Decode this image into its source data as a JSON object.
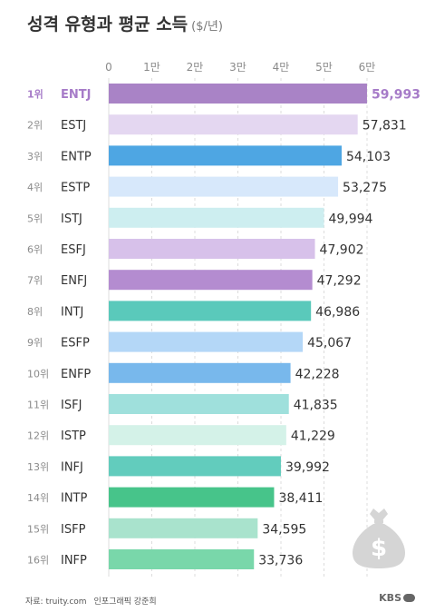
{
  "header": {
    "title": "성격 유형과 평균 소득",
    "unit": "($/년)"
  },
  "chart_data": {
    "type": "bar",
    "orientation": "horizontal",
    "title": "성격 유형과 평균 소득",
    "unit": "($/년)",
    "xlim": [
      0,
      60000
    ],
    "x_ticks": [
      {
        "value": 0,
        "label": "0"
      },
      {
        "value": 10000,
        "label": "1만"
      },
      {
        "value": 20000,
        "label": "2만"
      },
      {
        "value": 30000,
        "label": "3만"
      },
      {
        "value": 40000,
        "label": "4만"
      },
      {
        "value": 50000,
        "label": "5만"
      },
      {
        "value": 60000,
        "label": "6만"
      }
    ],
    "grid": "vertical-dashed",
    "highlight_index": 0,
    "highlight_color": "#a67bc8",
    "bars": [
      {
        "rank": "1위",
        "type": "ENTJ",
        "value": 59993,
        "label": "59,993",
        "color": "#a983c6"
      },
      {
        "rank": "2위",
        "type": "ESTJ",
        "value": 57831,
        "label": "57,831",
        "color": "#e4d7f1"
      },
      {
        "rank": "3위",
        "type": "ENTP",
        "value": 54103,
        "label": "54,103",
        "color": "#4ea6e3"
      },
      {
        "rank": "4위",
        "type": "ESTP",
        "value": 53275,
        "label": "53,275",
        "color": "#d7e8fb"
      },
      {
        "rank": "5위",
        "type": "ISTJ",
        "value": 49994,
        "label": "49,994",
        "color": "#cdeef0"
      },
      {
        "rank": "6위",
        "type": "ESFJ",
        "value": 47902,
        "label": "47,902",
        "color": "#d7c1ea"
      },
      {
        "rank": "7위",
        "type": "ENFJ",
        "value": 47292,
        "label": "47,292",
        "color": "#b48cd0"
      },
      {
        "rank": "8위",
        "type": "INTJ",
        "value": 46986,
        "label": "46,986",
        "color": "#5ac9bb"
      },
      {
        "rank": "9위",
        "type": "ESFP",
        "value": 45067,
        "label": "45,067",
        "color": "#b4d7f7"
      },
      {
        "rank": "10위",
        "type": "ENFP",
        "value": 42228,
        "label": "42,228",
        "color": "#78b8ec"
      },
      {
        "rank": "11위",
        "type": "ISFJ",
        "value": 41835,
        "label": "41,835",
        "color": "#9fe0dc"
      },
      {
        "rank": "12위",
        "type": "ISTP",
        "value": 41229,
        "label": "41,229",
        "color": "#d4f2e8"
      },
      {
        "rank": "13위",
        "type": "INFJ",
        "value": 39992,
        "label": "39,992",
        "color": "#62ccbd"
      },
      {
        "rank": "14위",
        "type": "INTP",
        "value": 38411,
        "label": "38,411",
        "color": "#47c48a"
      },
      {
        "rank": "15위",
        "type": "ISFP",
        "value": 34595,
        "label": "34,595",
        "color": "#a9e3cd"
      },
      {
        "rank": "16위",
        "type": "INFP",
        "value": 33736,
        "label": "33,736",
        "color": "#79d7aa"
      }
    ]
  },
  "decoration": {
    "icon": "money-bag-icon",
    "color": "#d5d5d5"
  },
  "footer": {
    "source": "자료: truity.com",
    "credit": "인포그래픽 강준희",
    "brand": "KBS"
  }
}
